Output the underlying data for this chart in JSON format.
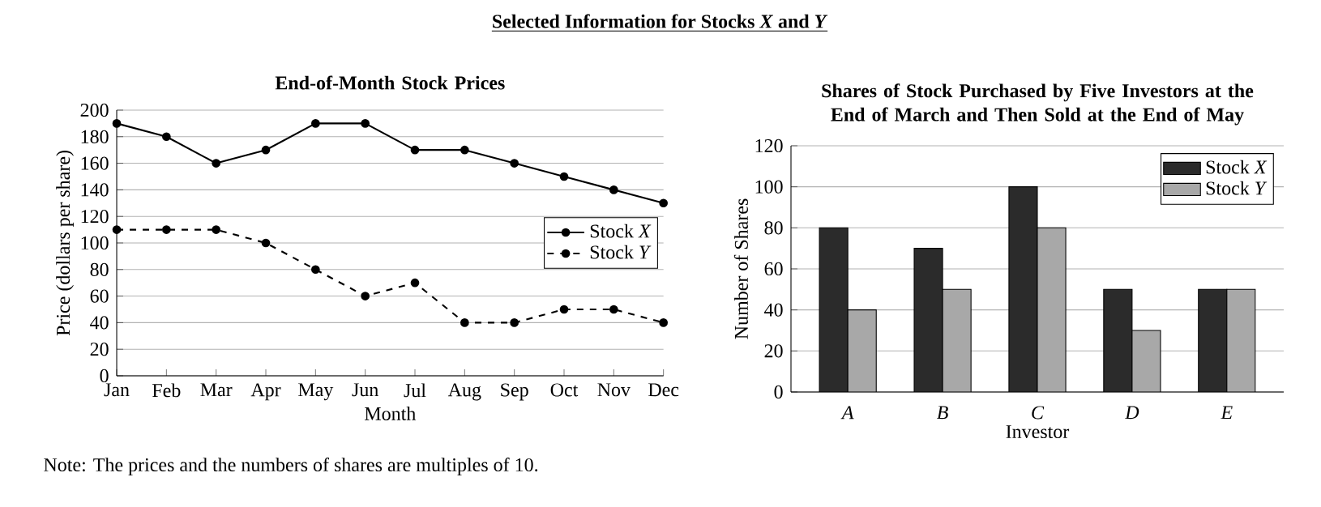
{
  "chart_data": [
    {
      "type": "line",
      "title": "End-of-Month Stock Prices",
      "xlabel": "Month",
      "ylabel": "Price (dollars per share)",
      "categories": [
        "Jan",
        "Feb",
        "Mar",
        "Apr",
        "May",
        "Jun",
        "Jul",
        "Aug",
        "Sep",
        "Oct",
        "Nov",
        "Dec"
      ],
      "series": [
        {
          "name": "Stock *X*",
          "color": "#000000",
          "line_style": "solid",
          "values": [
            190,
            180,
            160,
            170,
            190,
            190,
            170,
            170,
            160,
            150,
            140,
            130
          ]
        },
        {
          "name": "Stock *Y*",
          "color": "#000000",
          "line_style": "dashed",
          "values": [
            110,
            110,
            110,
            100,
            80,
            60,
            70,
            40,
            40,
            50,
            50,
            40
          ]
        }
      ],
      "ylim": [
        0,
        200
      ],
      "yticks": [
        0,
        20,
        40,
        60,
        80,
        100,
        120,
        140,
        160,
        180,
        200
      ],
      "grid": "y",
      "legend": "right",
      "marker": "circle",
      "annotations": [
        "Selected Information for Stocks *X* and *Y*",
        "Note: The prices and the numbers of shares are multiples of 10."
      ]
    },
    {
      "type": "bar",
      "title": "Shares of Stock Purchased by Five Investors at the End of March and Then Sold at the End of May",
      "xlabel": "Investor",
      "ylabel": "Number of Shares",
      "categories": [
        "A",
        "B",
        "C",
        "D",
        "E"
      ],
      "series": [
        {
          "name": "Stock *X*",
          "color": "#2b2b2b",
          "values": [
            80,
            70,
            100,
            50,
            50
          ]
        },
        {
          "name": "Stock *Y*",
          "color": "#a8a8a8",
          "values": [
            40,
            50,
            80,
            30,
            50
          ]
        }
      ],
      "ylim": [
        0,
        120
      ],
      "yticks": [
        0,
        20,
        40,
        60,
        80,
        100,
        120
      ],
      "grid": "y",
      "legend": "top right"
    }
  ]
}
